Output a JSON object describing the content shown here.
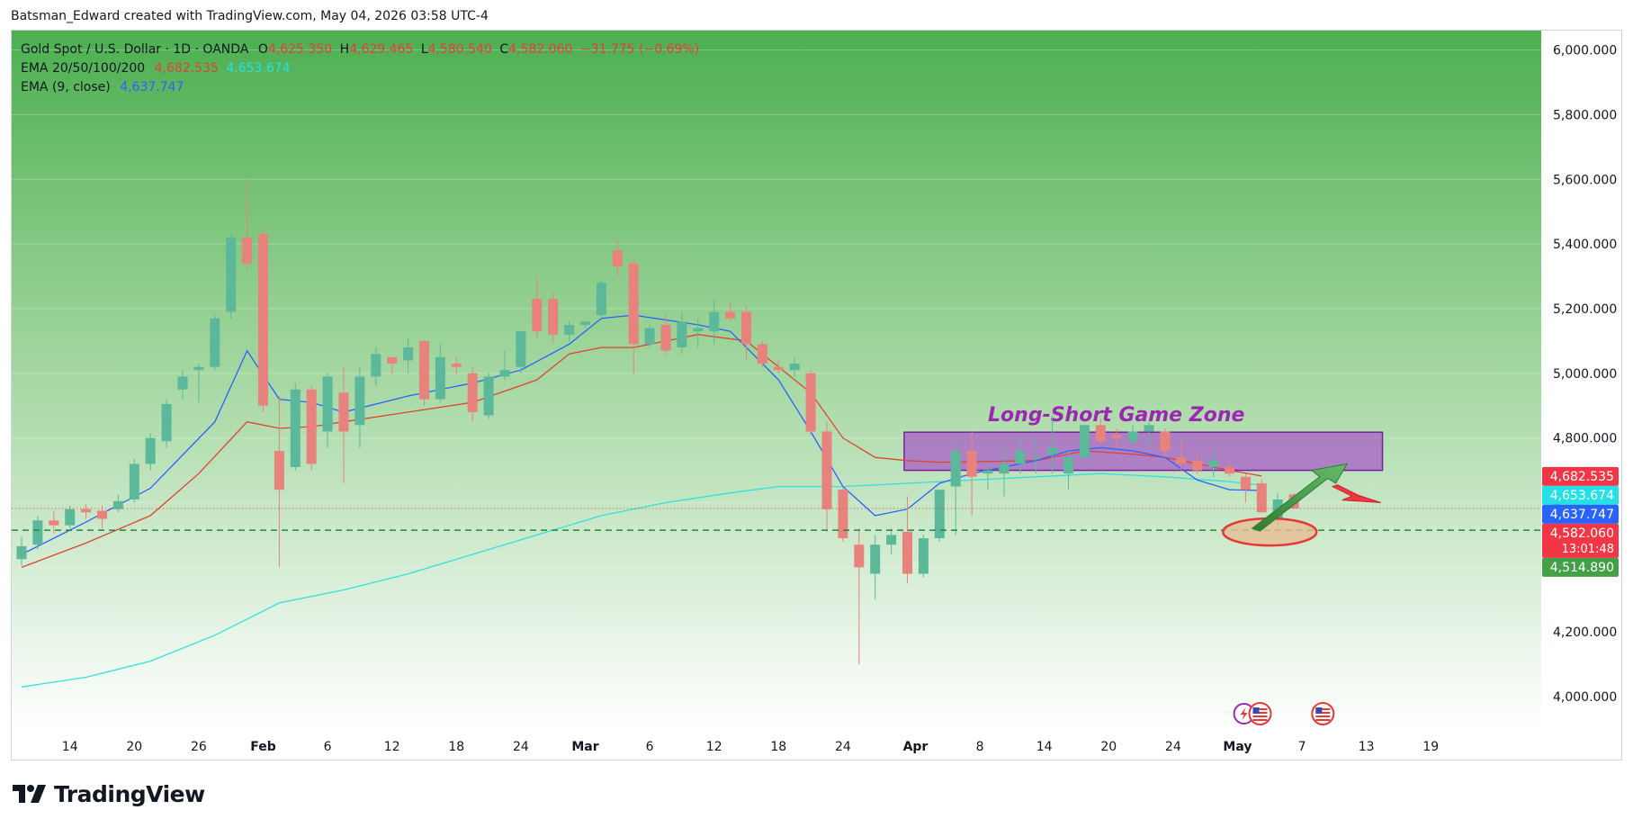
{
  "caption": "Batsman_Edward created with TradingView.com, May 04, 2026 03:58 UTC-4",
  "legend": {
    "symbol": "Gold Spot / U.S. Dollar · 1D · OANDA",
    "o_label": "O",
    "o_value": "4,625.350",
    "h_label": "H",
    "h_value": "4,629.465",
    "l_label": "L",
    "l_value": "4,580.540",
    "c_label": "C",
    "c_value": "4,582.060",
    "change": "−31.775 (−0.69%)",
    "ema_multi_label": "EMA 20/50/100/200",
    "ema_multi_value1": "4,682.535",
    "ema_multi_value2": "4,653.674",
    "ema9_label": "EMA (9, close)",
    "ema9_value": "4,637.747"
  },
  "annotation": {
    "zone_label": "Long-Short Game Zone"
  },
  "brand": {
    "name": "TradingView"
  },
  "colors": {
    "bull": "#5cb89a",
    "bear": "#e8827d",
    "ema_short": "#2962ff",
    "ema_long": "#e0442f",
    "ema_slow": "#33e0e0",
    "zone": "#a855c9",
    "support_line": "#1e8a3a"
  },
  "chart_data": {
    "type": "candlestick",
    "instrument": "Gold Spot / U.S. Dollar",
    "timeframe": "1D",
    "y_axis": {
      "range": [
        3900,
        6060
      ],
      "ticks": [
        "6,000.000",
        "5,800.000",
        "5,600.000",
        "5,400.000",
        "5,200.000",
        "5,000.000",
        "4,800.000",
        "4,600.000",
        "4,400.000",
        "4,200.000",
        "4,000.000"
      ],
      "tick_values": [
        6000,
        5800,
        5600,
        5400,
        5200,
        5000,
        4800,
        4600,
        4400,
        4200,
        4000
      ]
    },
    "x_axis": {
      "labels": [
        {
          "text": "14",
          "slot": 3
        },
        {
          "text": "20",
          "slot": 7
        },
        {
          "text": "26",
          "slot": 11
        },
        {
          "text": "Feb",
          "slot": 15,
          "bold": true
        },
        {
          "text": "6",
          "slot": 19
        },
        {
          "text": "12",
          "slot": 23
        },
        {
          "text": "18",
          "slot": 27
        },
        {
          "text": "24",
          "slot": 31
        },
        {
          "text": "Mar",
          "slot": 35,
          "bold": true
        },
        {
          "text": "6",
          "slot": 39
        },
        {
          "text": "12",
          "slot": 43
        },
        {
          "text": "18",
          "slot": 47
        },
        {
          "text": "24",
          "slot": 51
        },
        {
          "text": "Apr",
          "slot": 55.5,
          "bold": true
        },
        {
          "text": "8",
          "slot": 59.5
        },
        {
          "text": "14",
          "slot": 63.5
        },
        {
          "text": "20",
          "slot": 67.5
        },
        {
          "text": "24",
          "slot": 71.5
        },
        {
          "text": "May",
          "slot": 75.5,
          "bold": true
        },
        {
          "text": "7",
          "slot": 79.5
        },
        {
          "text": "13",
          "slot": 83.5
        },
        {
          "text": "19",
          "slot": 87.5
        }
      ]
    },
    "candles": [
      [
        4425,
        4495,
        4405,
        4465
      ],
      [
        4470,
        4560,
        4455,
        4545
      ],
      [
        4545,
        4575,
        4505,
        4530
      ],
      [
        4530,
        4590,
        4520,
        4580
      ],
      [
        4580,
        4595,
        4550,
        4570
      ],
      [
        4575,
        4590,
        4520,
        4550
      ],
      [
        4580,
        4625,
        4570,
        4605
      ],
      [
        4610,
        4735,
        4600,
        4720
      ],
      [
        4720,
        4815,
        4700,
        4800
      ],
      [
        4790,
        4920,
        4770,
        4905
      ],
      [
        4950,
        5010,
        4920,
        4990
      ],
      [
        5010,
        5030,
        4910,
        5020
      ],
      [
        5020,
        5180,
        5010,
        5170
      ],
      [
        5190,
        5430,
        5170,
        5420
      ],
      [
        5420,
        5600,
        5320,
        5340
      ],
      [
        5430,
        5450,
        4880,
        4900
      ],
      [
        4760,
        4930,
        4400,
        4640
      ],
      [
        4710,
        4970,
        4700,
        4950
      ],
      [
        4950,
        4960,
        4700,
        4720
      ],
      [
        4820,
        5000,
        4770,
        4990
      ],
      [
        4940,
        5020,
        4660,
        4820
      ],
      [
        4840,
        5020,
        4770,
        4990
      ],
      [
        4990,
        5080,
        4960,
        5060
      ],
      [
        5050,
        5050,
        5000,
        5030
      ],
      [
        5040,
        5110,
        5000,
        5080
      ],
      [
        5100,
        5100,
        4900,
        4920
      ],
      [
        4920,
        5090,
        4910,
        5050
      ],
      [
        5030,
        5050,
        5000,
        5020
      ],
      [
        5000,
        5020,
        4850,
        4880
      ],
      [
        4870,
        5000,
        4860,
        4990
      ],
      [
        4990,
        5070,
        4980,
        5010
      ],
      [
        5020,
        5130,
        5000,
        5130
      ],
      [
        5230,
        5300,
        5110,
        5130
      ],
      [
        5230,
        5250,
        5090,
        5120
      ],
      [
        5120,
        5160,
        5100,
        5150
      ],
      [
        5150,
        5160,
        5140,
        5160
      ],
      [
        5180,
        5290,
        5170,
        5280
      ],
      [
        5380,
        5410,
        5300,
        5330
      ],
      [
        5340,
        5360,
        5000,
        5090
      ],
      [
        5090,
        5150,
        5080,
        5140
      ],
      [
        5150,
        5180,
        5060,
        5070
      ],
      [
        5080,
        5190,
        5060,
        5160
      ],
      [
        5130,
        5170,
        5080,
        5140
      ],
      [
        5130,
        5230,
        5090,
        5190
      ],
      [
        5190,
        5220,
        5160,
        5170
      ],
      [
        5190,
        5210,
        5040,
        5090
      ],
      [
        5090,
        5100,
        5020,
        5030
      ],
      [
        5020,
        5040,
        5000,
        5010
      ],
      [
        5010,
        5050,
        4990,
        5030
      ],
      [
        5000,
        5010,
        4810,
        4820
      ],
      [
        4820,
        4850,
        4510,
        4580
      ],
      [
        4640,
        4650,
        4480,
        4490
      ],
      [
        4470,
        4520,
        4100,
        4400
      ],
      [
        4380,
        4500,
        4300,
        4470
      ],
      [
        4470,
        4520,
        4440,
        4500
      ],
      [
        4510,
        4620,
        4350,
        4380
      ],
      [
        4380,
        4500,
        4370,
        4490
      ],
      [
        4490,
        4620,
        4480,
        4640
      ],
      [
        4650,
        4790,
        4500,
        4760
      ],
      [
        4760,
        4820,
        4560,
        4680
      ],
      [
        4690,
        4720,
        4640,
        4700
      ],
      [
        4690,
        4770,
        4620,
        4720
      ],
      [
        4720,
        4800,
        4690,
        4760
      ],
      [
        4740,
        4800,
        4690,
        4740
      ],
      [
        4750,
        4870,
        4690,
        4770
      ],
      [
        4690,
        4760,
        4640,
        4740
      ],
      [
        4740,
        4840,
        4720,
        4840
      ],
      [
        4840,
        4860,
        4780,
        4790
      ],
      [
        4810,
        4830,
        4770,
        4800
      ],
      [
        4790,
        4840,
        4770,
        4820
      ],
      [
        4820,
        4850,
        4770,
        4840
      ],
      [
        4820,
        4830,
        4740,
        4760
      ],
      [
        4740,
        4790,
        4700,
        4720
      ],
      [
        4730,
        4750,
        4690,
        4700
      ],
      [
        4710,
        4760,
        4680,
        4730
      ],
      [
        4710,
        4720,
        4680,
        4690
      ],
      [
        4680,
        4690,
        4600,
        4640
      ],
      [
        4660,
        4670,
        4580,
        4570
      ],
      [
        4550,
        4630,
        4530,
        4610
      ],
      [
        4625.35,
        4629.465,
        4580.54,
        4582.06
      ]
    ],
    "ema_9": [
      [
        0,
        4440
      ],
      [
        4,
        4540
      ],
      [
        8,
        4645
      ],
      [
        12,
        4850
      ],
      [
        14,
        5070
      ],
      [
        16,
        4920
      ],
      [
        18,
        4910
      ],
      [
        20,
        4880
      ],
      [
        24,
        4930
      ],
      [
        28,
        4970
      ],
      [
        31,
        5010
      ],
      [
        34,
        5090
      ],
      [
        36,
        5170
      ],
      [
        38,
        5180
      ],
      [
        42,
        5150
      ],
      [
        44,
        5130
      ],
      [
        47,
        4980
      ],
      [
        49,
        4820
      ],
      [
        51,
        4650
      ],
      [
        53,
        4560
      ],
      [
        55,
        4580
      ],
      [
        57,
        4660
      ],
      [
        59,
        4690
      ],
      [
        63,
        4730
      ],
      [
        65,
        4760
      ],
      [
        67,
        4770
      ],
      [
        69,
        4760
      ],
      [
        71,
        4740
      ],
      [
        73,
        4670
      ],
      [
        75,
        4640
      ],
      [
        77,
        4637.747
      ]
    ],
    "ema_20": [
      [
        0,
        4400
      ],
      [
        4,
        4475
      ],
      [
        8,
        4560
      ],
      [
        11,
        4690
      ],
      [
        14,
        4850
      ],
      [
        16,
        4830
      ],
      [
        18,
        4835
      ],
      [
        20,
        4850
      ],
      [
        24,
        4880
      ],
      [
        28,
        4910
      ],
      [
        32,
        4980
      ],
      [
        34,
        5060
      ],
      [
        36,
        5080
      ],
      [
        38,
        5080
      ],
      [
        42,
        5120
      ],
      [
        45,
        5100
      ],
      [
        47,
        5020
      ],
      [
        49,
        4940
      ],
      [
        51,
        4800
      ],
      [
        53,
        4740
      ],
      [
        55,
        4730
      ],
      [
        57,
        4725
      ],
      [
        63,
        4730
      ],
      [
        66,
        4760
      ],
      [
        69,
        4750
      ],
      [
        71,
        4740
      ],
      [
        73,
        4720
      ],
      [
        75,
        4700
      ],
      [
        77,
        4682.535
      ]
    ],
    "ema_100": [
      [
        0,
        4030
      ],
      [
        4,
        4060
      ],
      [
        8,
        4110
      ],
      [
        12,
        4190
      ],
      [
        14,
        4240
      ],
      [
        16,
        4290
      ],
      [
        20,
        4330
      ],
      [
        24,
        4380
      ],
      [
        28,
        4440
      ],
      [
        32,
        4500
      ],
      [
        36,
        4560
      ],
      [
        40,
        4600
      ],
      [
        44,
        4630
      ],
      [
        47,
        4650
      ],
      [
        51,
        4650
      ],
      [
        55,
        4660
      ],
      [
        59,
        4670
      ],
      [
        63,
        4680
      ],
      [
        67,
        4690
      ],
      [
        71,
        4680
      ],
      [
        75,
        4665
      ],
      [
        77,
        4653.674
      ]
    ],
    "support_level": 4514.89,
    "zone": {
      "top": 4818,
      "bottom": 4700,
      "from_slot": 54.8,
      "to_slot": 84.5
    },
    "price_tags": [
      {
        "value": 4682.535,
        "text": "4,682.535",
        "color": "#f23645"
      },
      {
        "value": 4653.674,
        "text": "4,653.674",
        "color": "#26e0e8"
      },
      {
        "value": 4637.747,
        "text": "4,637.747",
        "color": "#2962ff"
      },
      {
        "value": 4582.06,
        "text": "4,582.060",
        "sub": "13:01:48",
        "color": "#f23645"
      },
      {
        "value": 4514.89,
        "text": "4,514.890",
        "color": "#43a047"
      }
    ]
  }
}
